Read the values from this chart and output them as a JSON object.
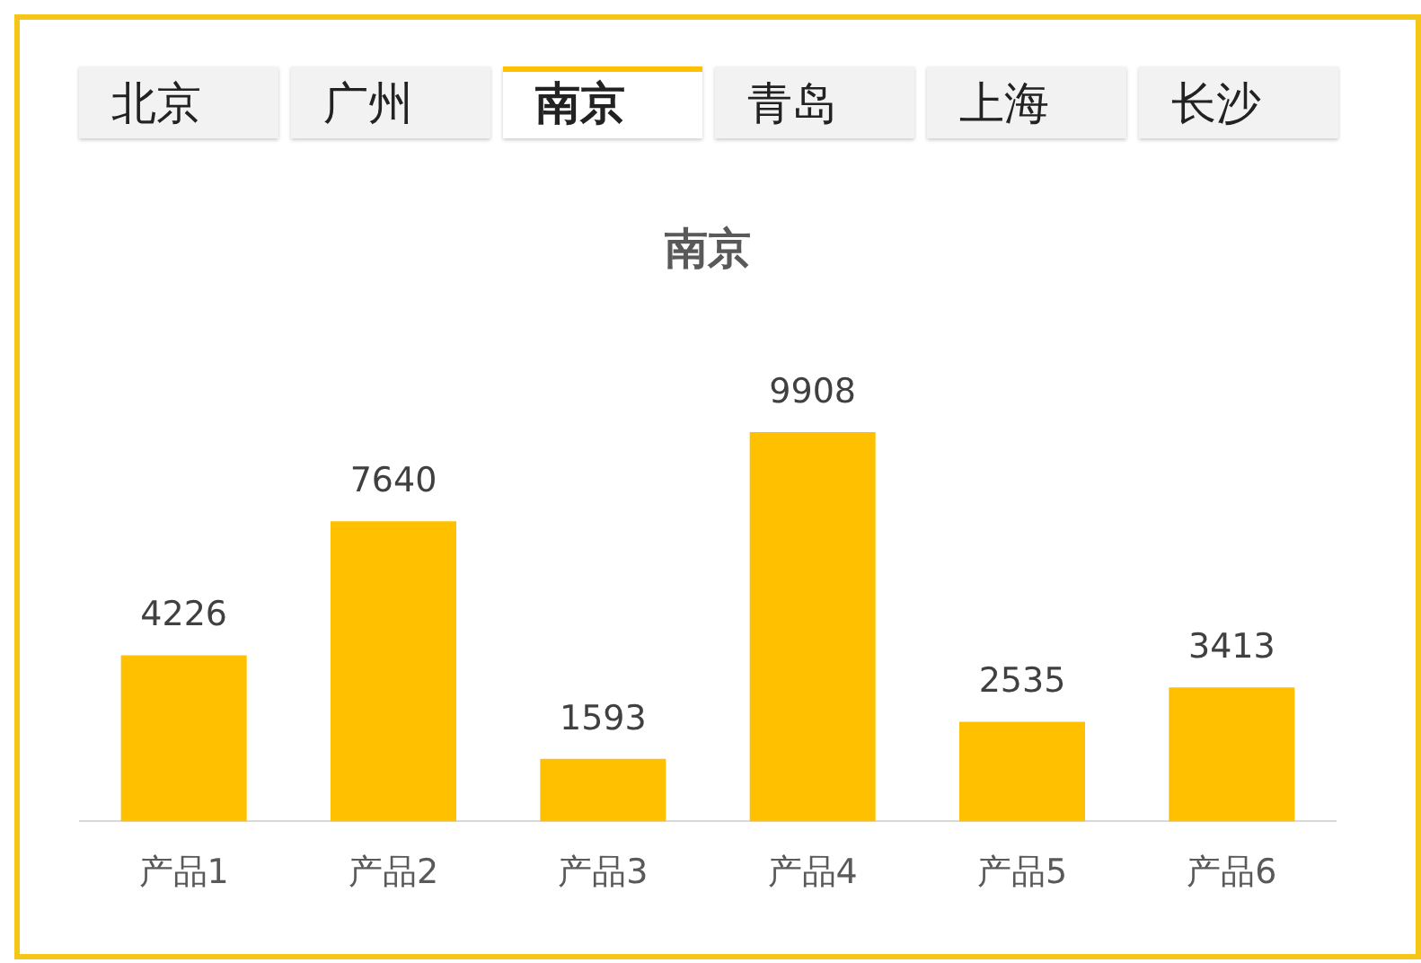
{
  "chart_data": {
    "type": "bar",
    "title": "南京",
    "categories": [
      "产品1",
      "产品2",
      "产品3",
      "产品4",
      "产品5",
      "产品6"
    ],
    "values": [
      4226,
      7640,
      1593,
      9908,
      2535,
      3413
    ],
    "color": "#ffc000",
    "data_labels": true,
    "grid": false,
    "legend": false,
    "annotations": [
      "北京",
      "广州",
      "南京",
      "青岛",
      "上海",
      "长沙"
    ]
  }
}
